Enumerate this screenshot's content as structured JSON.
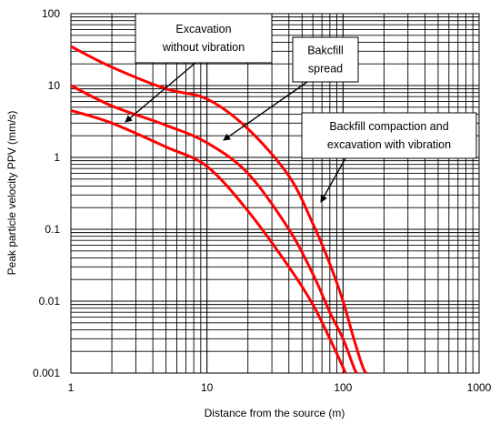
{
  "chart_data": {
    "type": "line",
    "xlabel": "Distance from the source (m)",
    "ylabel": "Peak particle velocity PPV (mm/s)",
    "x_scale": "log",
    "y_scale": "log",
    "xlim": [
      1,
      1000
    ],
    "ylim": [
      0.001,
      100
    ],
    "x_ticks": [
      "1",
      "10",
      "100",
      "1000"
    ],
    "y_ticks": [
      "0.001",
      "0.01",
      "0.1",
      "1",
      "10",
      "100"
    ],
    "grid": true,
    "line_color": "#ff0000",
    "series": [
      {
        "x": [
          1,
          2,
          5,
          10,
          20,
          40,
          60,
          80,
          100,
          120,
          140,
          148
        ],
        "y": [
          35,
          18,
          9,
          6.5,
          2.5,
          0.55,
          0.12,
          0.033,
          0.01,
          0.003,
          0.0012,
          0.001
        ]
      },
      {
        "x": [
          1,
          2,
          5,
          10,
          20,
          40,
          60,
          80,
          100,
          120,
          126
        ],
        "y": [
          10,
          5.2,
          2.8,
          1.6,
          0.6,
          0.1,
          0.024,
          0.007,
          0.003,
          0.0012,
          0.001
        ]
      },
      {
        "x": [
          1,
          2,
          5,
          10,
          20,
          40,
          60,
          80,
          100,
          104
        ],
        "y": [
          4.5,
          3,
          1.4,
          0.75,
          0.18,
          0.03,
          0.009,
          0.003,
          0.0012,
          0.001
        ]
      }
    ],
    "annotations": [
      {
        "lines": [
          "Excavation",
          "without  vibration"
        ]
      },
      {
        "lines": [
          "Bakcfill",
          "spread"
        ]
      },
      {
        "lines": [
          "Backfill compaction and",
          "excavation with  vibration"
        ]
      }
    ]
  }
}
